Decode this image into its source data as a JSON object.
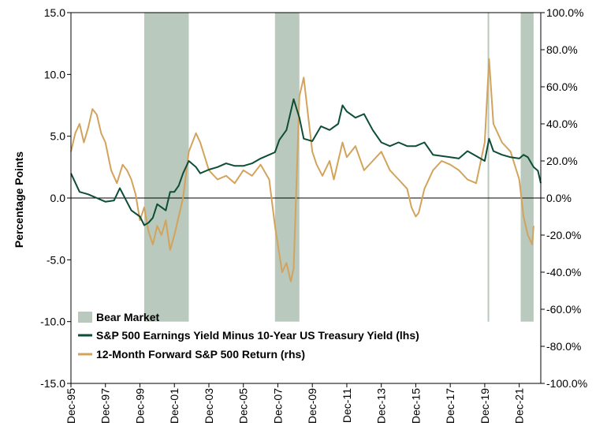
{
  "colors": {
    "bear": "#b9c9bd",
    "eyield": "#0d4d36",
    "return": "#d3a35c",
    "axis": "#000000"
  },
  "chart_data": {
    "type": "line",
    "ylabel": "Percentage Points",
    "left_axis": {
      "ylim": [
        -15,
        15
      ],
      "ticks": [
        15,
        10,
        5,
        0,
        -5,
        -10,
        -15
      ],
      "tick_labels": [
        "15.0",
        "10.0",
        "5.0",
        "0.0",
        "-5.0",
        "-10.0",
        "-15.0"
      ]
    },
    "right_axis": {
      "ylim": [
        -100,
        100
      ],
      "ticks": [
        100,
        80,
        60,
        40,
        20,
        0,
        -20,
        -40,
        -60,
        -80,
        -100
      ],
      "tick_labels": [
        "100.0%",
        "80.0%",
        "60.0%",
        "40.0%",
        "20.0%",
        "0.0%",
        "-20.0%",
        "-40.0%",
        "-60.0%",
        "-80.0%",
        "-100.0%"
      ]
    },
    "x_axis": {
      "range": [
        "1995-12",
        "2023-03"
      ],
      "ticks": [
        "1995-12",
        "1997-12",
        "1999-12",
        "2001-12",
        "2003-12",
        "2005-12",
        "2007-12",
        "2009-12",
        "2011-12",
        "2013-12",
        "2015-12",
        "2017-12",
        "2019-12",
        "2021-12"
      ],
      "tick_labels": [
        "Dec-95",
        "Dec-97",
        "Dec-99",
        "Dec-01",
        "Dec-03",
        "Dec-05",
        "Dec-07",
        "Dec-09",
        "Dec-11",
        "Dec-13",
        "Dec-15",
        "Dec-17",
        "Dec-19",
        "Dec-21"
      ]
    },
    "bear_markets": [
      {
        "start": "2000-03",
        "end": "2002-10"
      },
      {
        "start": "2007-10",
        "end": "2009-03"
      },
      {
        "start": "2020-02",
        "end": "2020-03"
      },
      {
        "start": "2022-01",
        "end": "2022-10"
      }
    ],
    "legend": {
      "position": "bottom-left",
      "entries": [
        "Bear Market",
        "S&P 500 Earnings Yield Minus 10-Year US Treasury Yield (lhs)",
        "12-Month Forward S&P 500 Return (rhs)"
      ]
    },
    "series": [
      {
        "name": "S&P 500 Earnings Yield Minus 10-Year US Treasury Yield (lhs)",
        "axis": "left",
        "x": [
          "1995-12",
          "1996-06",
          "1996-12",
          "1997-06",
          "1997-12",
          "1998-06",
          "1998-10",
          "1999-06",
          "1999-12",
          "2000-03",
          "2000-06",
          "2000-09",
          "2000-12",
          "2001-06",
          "2001-09",
          "2001-12",
          "2002-03",
          "2002-06",
          "2002-10",
          "2003-03",
          "2003-06",
          "2003-12",
          "2004-06",
          "2004-12",
          "2005-06",
          "2005-12",
          "2006-06",
          "2006-12",
          "2007-06",
          "2007-10",
          "2008-01",
          "2008-06",
          "2008-11",
          "2009-03",
          "2009-06",
          "2009-12",
          "2010-06",
          "2010-12",
          "2011-06",
          "2011-09",
          "2011-12",
          "2012-06",
          "2012-12",
          "2013-06",
          "2013-12",
          "2014-06",
          "2014-12",
          "2015-06",
          "2015-12",
          "2016-06",
          "2016-12",
          "2017-06",
          "2017-12",
          "2018-06",
          "2018-12",
          "2019-06",
          "2019-12",
          "2020-03",
          "2020-06",
          "2020-12",
          "2021-06",
          "2021-12",
          "2022-03",
          "2022-06",
          "2022-10",
          "2023-01",
          "2023-03"
        ],
        "values": [
          2.0,
          0.5,
          0.3,
          0.0,
          -0.3,
          -0.2,
          0.8,
          -1.0,
          -1.5,
          -2.2,
          -2.0,
          -1.6,
          -0.5,
          -1.0,
          0.5,
          0.5,
          1.0,
          2.0,
          3.0,
          2.5,
          2.0,
          2.3,
          2.5,
          2.8,
          2.6,
          2.6,
          2.8,
          3.2,
          3.5,
          3.7,
          4.7,
          5.5,
          8.0,
          6.5,
          4.8,
          4.6,
          5.8,
          5.5,
          6.0,
          7.5,
          7.0,
          6.5,
          6.8,
          5.5,
          4.5,
          4.2,
          4.5,
          4.2,
          4.2,
          4.5,
          3.5,
          3.4,
          3.3,
          3.2,
          3.8,
          3.4,
          3.0,
          4.8,
          3.8,
          3.5,
          3.3,
          3.2,
          3.5,
          3.3,
          2.5,
          2.2,
          1.2
        ]
      },
      {
        "name": "12-Month Forward S&P 500 Return (rhs)",
        "axis": "right",
        "x": [
          "1995-12",
          "1996-03",
          "1996-06",
          "1996-09",
          "1996-12",
          "1997-03",
          "1997-06",
          "1997-09",
          "1997-12",
          "1998-04",
          "1998-08",
          "1998-12",
          "1999-03",
          "1999-06",
          "1999-09",
          "1999-12",
          "2000-03",
          "2000-06",
          "2000-09",
          "2000-12",
          "2001-03",
          "2001-06",
          "2001-09",
          "2001-12",
          "2002-03",
          "2002-06",
          "2002-10",
          "2003-03",
          "2003-06",
          "2003-12",
          "2004-06",
          "2004-12",
          "2005-06",
          "2005-12",
          "2006-06",
          "2006-12",
          "2007-06",
          "2007-10",
          "2008-03",
          "2008-06",
          "2008-09",
          "2008-11",
          "2009-03",
          "2009-06",
          "2009-09",
          "2009-12",
          "2010-03",
          "2010-07",
          "2010-12",
          "2011-03",
          "2011-09",
          "2011-12",
          "2012-06",
          "2012-12",
          "2013-06",
          "2013-12",
          "2014-06",
          "2014-12",
          "2015-06",
          "2015-09",
          "2015-12",
          "2016-02",
          "2016-06",
          "2016-12",
          "2017-06",
          "2017-12",
          "2018-06",
          "2018-12",
          "2019-06",
          "2019-12",
          "2020-03",
          "2020-06",
          "2020-12",
          "2021-06",
          "2021-12",
          "2022-03",
          "2022-06",
          "2022-09",
          "2022-10"
        ],
        "values": [
          25,
          35,
          40,
          30,
          38,
          48,
          45,
          35,
          30,
          15,
          8,
          18,
          15,
          10,
          2,
          -12,
          -5,
          -18,
          -25,
          -15,
          -20,
          -12,
          -28,
          -20,
          -10,
          0,
          25,
          35,
          30,
          15,
          10,
          12,
          8,
          15,
          12,
          18,
          10,
          -15,
          -40,
          -35,
          -45,
          -38,
          55,
          65,
          45,
          25,
          18,
          12,
          20,
          10,
          30,
          22,
          28,
          15,
          20,
          25,
          15,
          10,
          5,
          -5,
          -10,
          -8,
          5,
          15,
          20,
          18,
          15,
          10,
          8,
          30,
          75,
          40,
          30,
          25,
          10,
          -10,
          -20,
          -25,
          -15
        ]
      }
    ]
  }
}
